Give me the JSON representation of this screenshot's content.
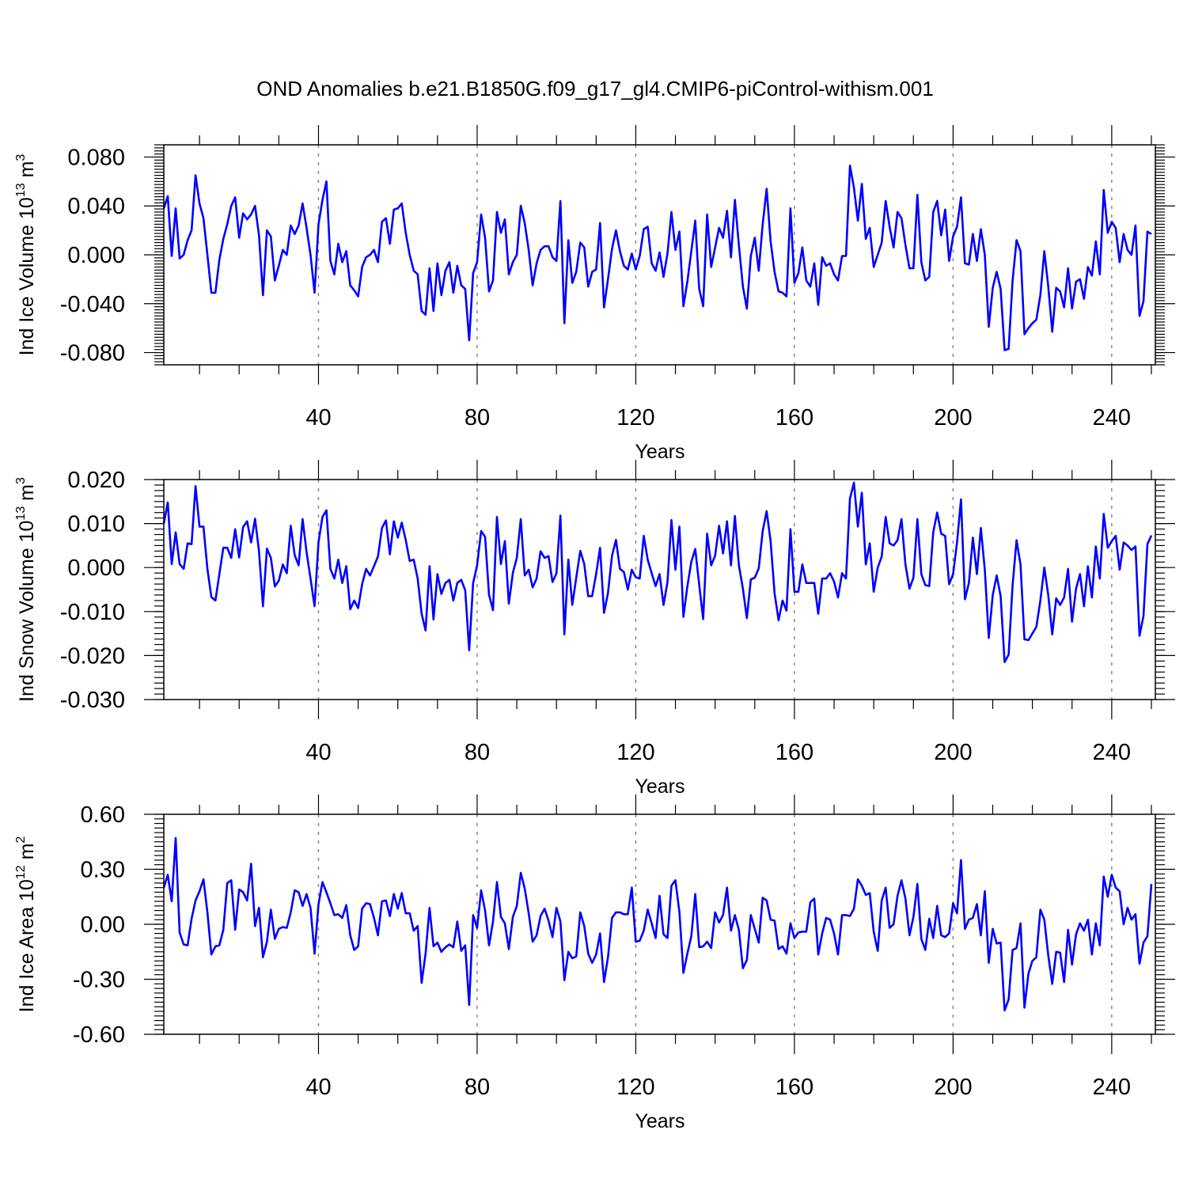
{
  "title": "OND Anomalies b.e21.B1850G.f09_g17_gl4.CMIP6-piControl-withism.001",
  "line_color": "#0000ff",
  "chart_data": [
    {
      "type": "line",
      "name": "ind-ice-volume",
      "ylabel": "Ind Ice Volume 10",
      "ylabel_exp": "13",
      "ylabel_unit": " m",
      "ylabel_unit_exp": "3",
      "xlabel": "Years",
      "xlim": [
        1,
        251
      ],
      "ylim": [
        -0.09,
        0.09
      ],
      "x_ticks": [
        40,
        80,
        120,
        160,
        200,
        240
      ],
      "x_tick_labels": [
        "40",
        "80",
        "120",
        "160",
        "200",
        "240"
      ],
      "y_ticks": [
        0.08,
        0.04,
        0.0,
        -0.04,
        -0.08
      ],
      "y_tick_labels": [
        "0.080",
        "0.040",
        "0.000",
        "-0.040",
        "-0.080"
      ],
      "values": [
        0.038,
        0.048,
        -0.001,
        0.038,
        -0.003,
        0.0,
        0.012,
        0.02,
        0.065,
        0.042,
        0.03,
        0.0,
        -0.031,
        -0.031,
        -0.004,
        0.013,
        0.025,
        0.04,
        0.047,
        0.014,
        0.034,
        0.029,
        0.033,
        0.04,
        0.016,
        -0.033,
        0.02,
        0.015,
        -0.021,
        -0.009,
        0.004,
        0.0,
        0.024,
        0.017,
        0.024,
        0.042,
        0.022,
        0.0,
        -0.031,
        0.025,
        0.045,
        0.06,
        -0.005,
        -0.016,
        0.009,
        -0.006,
        0.003,
        -0.025,
        -0.029,
        -0.034,
        -0.01,
        -0.002,
        0.0,
        0.004,
        -0.006,
        0.027,
        0.03,
        0.009,
        0.037,
        0.038,
        0.042,
        0.018,
        0.0,
        -0.013,
        -0.016,
        -0.046,
        -0.049,
        -0.011,
        -0.046,
        -0.007,
        -0.033,
        -0.013,
        -0.006,
        -0.031,
        -0.009,
        -0.025,
        -0.028,
        -0.07,
        -0.015,
        -0.006,
        0.033,
        0.014,
        -0.03,
        -0.021,
        0.035,
        0.018,
        0.029,
        -0.016,
        -0.006,
        0.0,
        0.04,
        0.026,
        0.004,
        -0.025,
        -0.007,
        0.004,
        0.007,
        0.007,
        -0.002,
        -0.005,
        0.044,
        -0.056,
        0.012,
        -0.023,
        -0.014,
        0.01,
        0.006,
        -0.026,
        -0.014,
        -0.012,
        0.026,
        -0.043,
        -0.02,
        0.005,
        0.02,
        0.003,
        -0.009,
        -0.012,
        0.001,
        -0.012,
        -0.001,
        0.021,
        0.023,
        -0.007,
        -0.013,
        0.002,
        -0.018,
        0.001,
        0.035,
        0.004,
        0.019,
        -0.042,
        -0.022,
        0.003,
        0.028,
        -0.028,
        -0.042,
        0.033,
        -0.01,
        0.006,
        0.022,
        0.014,
        0.036,
        -0.002,
        0.045,
        0.008,
        -0.026,
        -0.044,
        -0.001,
        0.014,
        -0.013,
        0.025,
        0.054,
        0.011,
        -0.014,
        -0.03,
        -0.031,
        -0.034,
        0.038,
        -0.023,
        -0.015,
        0.006,
        -0.021,
        -0.026,
        -0.007,
        -0.041,
        -0.002,
        -0.009,
        -0.007,
        -0.016,
        -0.021,
        -0.001,
        -0.001,
        0.073,
        0.055,
        0.028,
        0.058,
        0.013,
        0.022,
        -0.01,
        0.0,
        0.01,
        0.044,
        0.023,
        0.006,
        0.035,
        0.03,
        0.008,
        -0.011,
        -0.011,
        0.049,
        -0.006,
        -0.021,
        -0.018,
        0.035,
        0.044,
        0.016,
        0.037,
        -0.005,
        0.015,
        0.023,
        0.047,
        -0.007,
        -0.008,
        0.017,
        -0.005,
        0.021,
        0.0,
        -0.059,
        -0.027,
        -0.014,
        -0.028,
        -0.078,
        -0.077,
        -0.021,
        0.012,
        0.003,
        -0.065,
        -0.06,
        -0.056,
        -0.053,
        -0.033,
        0.003,
        -0.026,
        -0.063,
        -0.027,
        -0.03,
        -0.043,
        -0.011,
        -0.044,
        -0.022,
        -0.02,
        -0.036,
        -0.01,
        -0.017,
        0.011,
        -0.016,
        0.053,
        0.018,
        0.027,
        0.022,
        -0.006,
        0.017,
        0.004,
        0.0,
        0.024,
        -0.05,
        -0.038,
        0.019,
        0.017
      ]
    },
    {
      "type": "line",
      "name": "ind-snow-volume",
      "ylabel": "Ind Snow Volume 10",
      "ylabel_exp": "13",
      "ylabel_unit": " m",
      "ylabel_unit_exp": "3",
      "xlabel": "Years",
      "xlim": [
        1,
        251
      ],
      "ylim": [
        -0.03,
        0.02
      ],
      "x_ticks": [
        40,
        80,
        120,
        160,
        200,
        240
      ],
      "x_tick_labels": [
        "40",
        "80",
        "120",
        "160",
        "200",
        "240"
      ],
      "y_ticks": [
        0.02,
        0.01,
        0.0,
        -0.01,
        -0.02,
        -0.03
      ],
      "y_tick_labels": [
        "0.020",
        "0.010",
        "0.000",
        "-0.010",
        "-0.020",
        "-0.030"
      ],
      "values": [
        0.01,
        0.0148,
        0.0008,
        0.008,
        0.0008,
        -0.0003,
        0.0055,
        0.0053,
        0.0185,
        0.0093,
        0.0093,
        -0.0003,
        -0.0067,
        -0.0075,
        -0.0015,
        0.0045,
        0.0045,
        0.0022,
        0.0087,
        0.0023,
        0.0092,
        0.0105,
        0.0057,
        0.0111,
        0.0037,
        -0.0088,
        0.0043,
        0.0022,
        -0.0043,
        -0.003,
        0.0007,
        -0.0013,
        0.0095,
        0.0028,
        0.0005,
        0.011,
        0.0035,
        -0.0025,
        -0.0088,
        0.0058,
        0.0115,
        0.013,
        -0.0003,
        -0.0025,
        0.0018,
        -0.0035,
        0.0003,
        -0.0095,
        -0.0075,
        -0.0092,
        -0.0038,
        -0.0003,
        -0.0018,
        0.0003,
        0.0025,
        0.009,
        0.0107,
        0.003,
        0.0105,
        0.0068,
        0.0102,
        0.0063,
        0.0015,
        0.0018,
        -0.0025,
        -0.0105,
        -0.0143,
        0.0003,
        -0.0118,
        -0.0015,
        -0.006,
        -0.0035,
        -0.0028,
        -0.0075,
        -0.0035,
        -0.0028,
        -0.0052,
        -0.0188,
        -0.0035,
        0.0005,
        0.0083,
        0.007,
        -0.0062,
        -0.0097,
        0.0115,
        0.0008,
        0.006,
        -0.0082,
        -0.0012,
        0.0022,
        0.011,
        -0.0018,
        -0.0005,
        -0.0045,
        -0.0025,
        0.0037,
        0.0022,
        0.0026,
        -0.0033,
        -0.0013,
        0.0118,
        -0.0152,
        0.0018,
        -0.0085,
        -0.0023,
        0.0038,
        0.0008,
        -0.0065,
        -0.0065,
        -0.0015,
        0.0045,
        -0.0103,
        -0.0058,
        0.0027,
        0.0063,
        -0.0003,
        -0.001,
        -0.005,
        -0.0005,
        -0.0022,
        -0.0025,
        0.0072,
        0.0018,
        -0.0013,
        -0.0042,
        -0.0015,
        -0.0085,
        -0.0033,
        0.0108,
        -0.0005,
        0.0093,
        -0.0112,
        -0.0043,
        0.0013,
        0.0042,
        -0.004,
        -0.0117,
        0.0077,
        0.0005,
        0.0027,
        0.0095,
        0.0032,
        0.0105,
        0.0005,
        0.0117,
        0.0005,
        -0.0048,
        -0.0115,
        -0.0027,
        -0.0023,
        -0.0002,
        0.0083,
        0.0128,
        0.006,
        -0.0058,
        -0.012,
        -0.0075,
        -0.0098,
        0.0087,
        -0.0055,
        -0.0055,
        0.0007,
        -0.0035,
        -0.0035,
        -0.0035,
        -0.0105,
        -0.0025,
        -0.0025,
        -0.0013,
        -0.0032,
        -0.0068,
        -0.0013,
        -0.0025,
        0.0157,
        0.0193,
        0.0093,
        0.017,
        0.0007,
        0.0055,
        -0.0055,
        0.0,
        0.0025,
        0.0115,
        0.0055,
        0.005,
        0.0062,
        0.011,
        0.0007,
        -0.0048,
        -0.0023,
        0.011,
        -0.0015,
        -0.004,
        -0.0042,
        0.008,
        0.0125,
        0.0077,
        0.0072,
        -0.0038,
        -0.0015,
        0.0057,
        0.0155,
        -0.0072,
        -0.0035,
        0.0068,
        -0.0015,
        0.009,
        -0.0005,
        -0.016,
        -0.0063,
        -0.0018,
        -0.0065,
        -0.0215,
        -0.0198,
        -0.004,
        0.0062,
        0.0007,
        -0.0163,
        -0.0165,
        -0.015,
        -0.0135,
        -0.0075,
        0.0,
        -0.0063,
        -0.0152,
        -0.007,
        -0.0085,
        -0.0068,
        -0.0003,
        -0.0123,
        -0.0048,
        -0.0015,
        -0.0088,
        0.0003,
        -0.0068,
        0.0048,
        -0.0025,
        0.0122,
        0.0045,
        0.006,
        0.0072,
        -0.0005,
        0.0057,
        0.005,
        0.004,
        0.0048,
        -0.0155,
        -0.011,
        0.0053,
        0.0073
      ]
    },
    {
      "type": "line",
      "name": "ind-ice-area",
      "ylabel": "Ind Ice Area 10",
      "ylabel_exp": "12",
      "ylabel_unit": " m",
      "ylabel_unit_exp": "2",
      "xlabel": "Years",
      "xlim": [
        1,
        251
      ],
      "ylim": [
        -0.6,
        0.6
      ],
      "x_ticks": [
        40,
        80,
        120,
        160,
        200,
        240
      ],
      "x_tick_labels": [
        "40",
        "80",
        "120",
        "160",
        "200",
        "240"
      ],
      "y_ticks": [
        0.6,
        0.3,
        0.0,
        -0.3,
        -0.6
      ],
      "y_tick_labels": [
        "0.60",
        "0.30",
        "0.00",
        "-0.30",
        "-0.60"
      ],
      "values": [
        0.2,
        0.27,
        0.125,
        0.47,
        -0.045,
        -0.11,
        -0.115,
        0.03,
        0.13,
        0.18,
        0.245,
        0.065,
        -0.165,
        -0.12,
        -0.115,
        -0.03,
        0.225,
        0.24,
        -0.03,
        0.19,
        0.175,
        0.13,
        0.33,
        -0.01,
        0.09,
        -0.18,
        -0.095,
        0.08,
        -0.08,
        -0.025,
        -0.015,
        -0.02,
        0.065,
        0.185,
        0.175,
        0.1,
        0.165,
        0.09,
        -0.16,
        0.11,
        0.23,
        0.175,
        0.115,
        0.05,
        0.055,
        0.035,
        0.105,
        -0.06,
        -0.14,
        -0.12,
        0.085,
        0.115,
        0.11,
        0.035,
        -0.06,
        0.125,
        0.13,
        0.045,
        0.165,
        0.085,
        0.17,
        0.06,
        0.06,
        -0.035,
        -0.01,
        -0.32,
        -0.16,
        0.09,
        -0.12,
        -0.1,
        -0.15,
        -0.125,
        -0.11,
        -0.125,
        0.015,
        -0.145,
        -0.115,
        -0.44,
        0.05,
        -0.02,
        0.185,
        0.075,
        -0.115,
        0.015,
        0.23,
        0.04,
        0.005,
        -0.135,
        0.04,
        0.1,
        0.28,
        0.195,
        0.06,
        -0.095,
        -0.06,
        0.045,
        0.085,
        0.02,
        -0.07,
        0.09,
        0.015,
        -0.305,
        -0.15,
        -0.185,
        -0.175,
        0.065,
        -0.01,
        -0.16,
        -0.21,
        -0.165,
        -0.05,
        -0.315,
        -0.18,
        0.035,
        0.065,
        0.065,
        0.055,
        0.055,
        0.2,
        -0.095,
        -0.09,
        -0.035,
        0.08,
        0.005,
        -0.075,
        0.155,
        -0.055,
        -0.075,
        0.21,
        0.24,
        0.065,
        -0.265,
        -0.16,
        -0.065,
        0.165,
        -0.125,
        -0.12,
        -0.095,
        -0.13,
        0.065,
        0.01,
        0.05,
        0.2,
        -0.035,
        0.05,
        -0.03,
        -0.24,
        -0.195,
        0.05,
        -0.025,
        -0.1,
        0.145,
        0.13,
        0.025,
        0.02,
        -0.135,
        -0.12,
        -0.16,
        0.005,
        -0.075,
        -0.045,
        -0.04,
        -0.04,
        0.12,
        0.14,
        -0.165,
        -0.05,
        0.035,
        0.025,
        -0.05,
        -0.165,
        0.05,
        0.05,
        0.045,
        0.085,
        0.245,
        0.21,
        0.16,
        0.17,
        -0.04,
        -0.145,
        0.13,
        0.2,
        -0.02,
        0.0,
        0.155,
        0.24,
        0.14,
        -0.06,
        0.04,
        0.22,
        -0.08,
        -0.14,
        0.03,
        -0.075,
        0.1,
        -0.06,
        -0.07,
        -0.05,
        0.115,
        0.06,
        0.35,
        -0.025,
        0.025,
        0.035,
        0.11,
        -0.06,
        0.18,
        -0.21,
        -0.025,
        -0.105,
        -0.1,
        -0.47,
        -0.41,
        -0.14,
        -0.13,
        0.005,
        -0.455,
        -0.27,
        -0.2,
        -0.18,
        0.08,
        0.025,
        -0.17,
        -0.325,
        -0.15,
        -0.155,
        -0.315,
        -0.03,
        -0.22,
        -0.055,
        0.005,
        -0.035,
        0.025,
        -0.165,
        0.005,
        -0.115,
        0.26,
        0.15,
        0.27,
        0.2,
        0.18,
        0.0,
        0.09,
        0.025,
        0.055,
        -0.215,
        -0.1,
        -0.065,
        0.22
      ]
    }
  ]
}
